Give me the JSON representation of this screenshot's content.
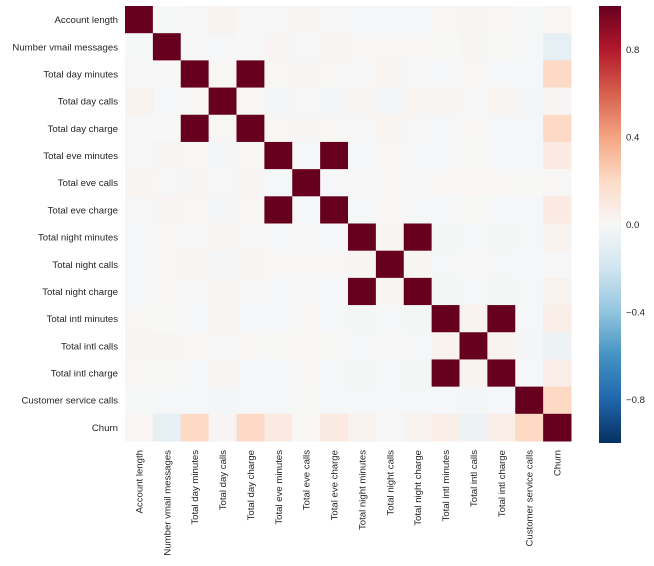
{
  "chart_data": {
    "type": "heatmap",
    "title": "",
    "xlabel": "",
    "ylabel": "",
    "colormap": "RdBu_r",
    "vmin": -1.0,
    "vmax": 1.0,
    "grid": false,
    "colorbar": {
      "placement": "right",
      "ticks": [
        0.8,
        0.4,
        0.0,
        -0.4,
        -0.8
      ],
      "tick_labels": [
        "0.8",
        "0.4",
        "0.0",
        "−0.4",
        "−0.8"
      ]
    },
    "labels": [
      "Account length",
      "Number vmail messages",
      "Total day minutes",
      "Total day calls",
      "Total day charge",
      "Total eve minutes",
      "Total eve calls",
      "Total eve charge",
      "Total night minutes",
      "Total night calls",
      "Total night charge",
      "Total intl minutes",
      "Total intl calls",
      "Total intl charge",
      "Customer service calls",
      "Churn"
    ],
    "matrix": [
      [
        1.0,
        -0.005,
        0.006,
        0.038,
        0.006,
        -0.007,
        0.019,
        -0.007,
        -0.009,
        -0.013,
        -0.009,
        0.009,
        0.021,
        0.009,
        -0.004,
        0.017
      ],
      [
        -0.005,
        1.0,
        0.001,
        -0.01,
        0.001,
        0.018,
        -0.006,
        0.018,
        0.008,
        0.007,
        0.008,
        0.003,
        0.014,
        0.003,
        -0.013,
        -0.09
      ],
      [
        0.006,
        0.001,
        1.0,
        0.007,
        1.0,
        0.007,
        0.016,
        0.007,
        0.004,
        0.023,
        0.004,
        -0.01,
        0.008,
        -0.01,
        -0.013,
        0.205
      ],
      [
        0.038,
        -0.01,
        0.007,
        1.0,
        0.007,
        -0.021,
        0.006,
        -0.021,
        0.023,
        -0.02,
        0.023,
        0.022,
        0.005,
        0.022,
        -0.019,
        0.018
      ],
      [
        0.006,
        0.001,
        1.0,
        0.007,
        1.0,
        0.007,
        0.016,
        0.007,
        0.004,
        0.023,
        0.004,
        -0.01,
        0.008,
        -0.01,
        -0.013,
        0.205
      ],
      [
        -0.007,
        0.018,
        0.007,
        -0.021,
        0.007,
        1.0,
        -0.011,
        1.0,
        -0.013,
        0.008,
        -0.013,
        -0.011,
        0.003,
        -0.011,
        -0.013,
        0.093
      ],
      [
        0.019,
        -0.006,
        0.016,
        0.006,
        0.016,
        -0.011,
        1.0,
        -0.011,
        -0.002,
        0.008,
        -0.002,
        0.009,
        0.017,
        0.009,
        0.003,
        0.009
      ],
      [
        -0.007,
        0.018,
        0.007,
        -0.021,
        0.007,
        1.0,
        -0.011,
        1.0,
        -0.013,
        0.008,
        -0.013,
        -0.011,
        0.003,
        -0.011,
        -0.013,
        0.093
      ],
      [
        -0.009,
        0.008,
        0.004,
        0.023,
        0.004,
        -0.013,
        -0.002,
        -0.013,
        1.0,
        0.011,
        1.0,
        -0.015,
        -0.012,
        -0.015,
        -0.009,
        0.035
      ],
      [
        -0.013,
        0.007,
        0.023,
        -0.02,
        0.023,
        0.008,
        0.008,
        0.008,
        0.011,
        1.0,
        0.011,
        -0.014,
        0.0,
        -0.014,
        -0.013,
        0.006
      ],
      [
        -0.009,
        0.008,
        0.004,
        0.023,
        0.004,
        -0.013,
        -0.002,
        -0.013,
        1.0,
        0.011,
        1.0,
        -0.015,
        -0.012,
        -0.015,
        -0.009,
        0.035
      ],
      [
        0.009,
        0.003,
        -0.01,
        0.022,
        -0.01,
        -0.011,
        0.009,
        -0.011,
        -0.015,
        -0.014,
        -0.015,
        1.0,
        0.032,
        1.0,
        -0.01,
        0.068
      ],
      [
        0.021,
        0.014,
        0.008,
        0.005,
        0.008,
        0.003,
        0.017,
        0.003,
        -0.012,
        0.0,
        -0.012,
        0.032,
        1.0,
        0.032,
        -0.018,
        -0.053
      ],
      [
        0.009,
        0.003,
        -0.01,
        0.022,
        -0.01,
        -0.011,
        0.009,
        -0.011,
        -0.015,
        -0.014,
        -0.015,
        1.0,
        0.032,
        1.0,
        -0.01,
        0.068
      ],
      [
        -0.004,
        -0.013,
        -0.013,
        -0.019,
        -0.013,
        -0.013,
        0.003,
        -0.013,
        -0.009,
        -0.013,
        -0.009,
        -0.01,
        -0.018,
        -0.01,
        1.0,
        0.209
      ],
      [
        0.017,
        -0.09,
        0.205,
        0.018,
        0.205,
        0.093,
        0.009,
        0.093,
        0.035,
        0.006,
        0.035,
        0.068,
        -0.053,
        0.068,
        0.209,
        1.0
      ]
    ]
  }
}
